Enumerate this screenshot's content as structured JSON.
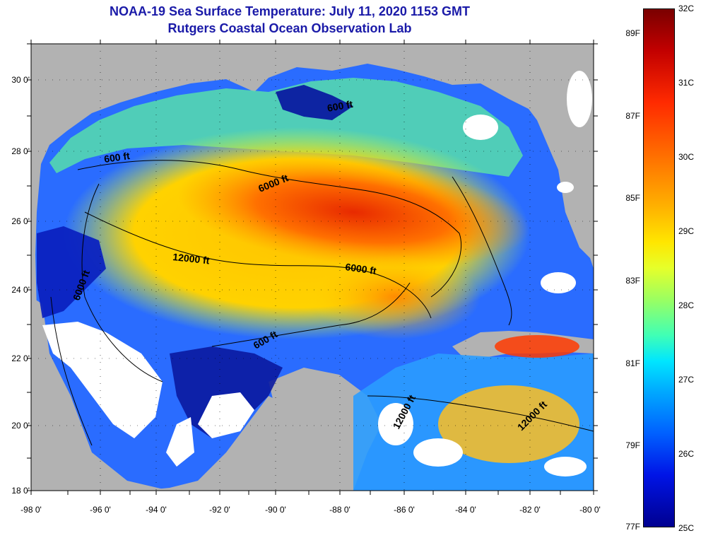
{
  "header": {
    "title": "NOAA-19 Sea Surface Temperature:  July 11, 2020 1153 GMT",
    "subtitle": "Rutgers Coastal Ocean Observation Lab"
  },
  "axes": {
    "latitude_labels": [
      "30 0'",
      "28 0'",
      "26 0'",
      "24 0'",
      "22 0'",
      "20 0'",
      "18 0'"
    ],
    "longitude_labels": [
      "-98 0'",
      "-96 0'",
      "-94 0'",
      "-92 0'",
      "-90 0'",
      "-88 0'",
      "-86 0'",
      "-84 0'",
      "-82 0'",
      "-80 0'"
    ]
  },
  "contours": {
    "labels": [
      "600 ft",
      "600 ft",
      "6000 ft",
      "12000 ft",
      "6000 ft",
      "6000 ft",
      "600 ft",
      "12000 ft",
      "12000 ft"
    ]
  },
  "colorbar": {
    "fahrenheit": [
      "89F",
      "87F",
      "85F",
      "83F",
      "81F",
      "79F",
      "77F"
    ],
    "celsius": [
      "32C",
      "31C",
      "30C",
      "29C",
      "28C",
      "27C",
      "26C",
      "25C"
    ]
  },
  "colors": {
    "land": "#b2b2b2",
    "cloud": "#ffffff",
    "title": "#1a1aa8"
  }
}
